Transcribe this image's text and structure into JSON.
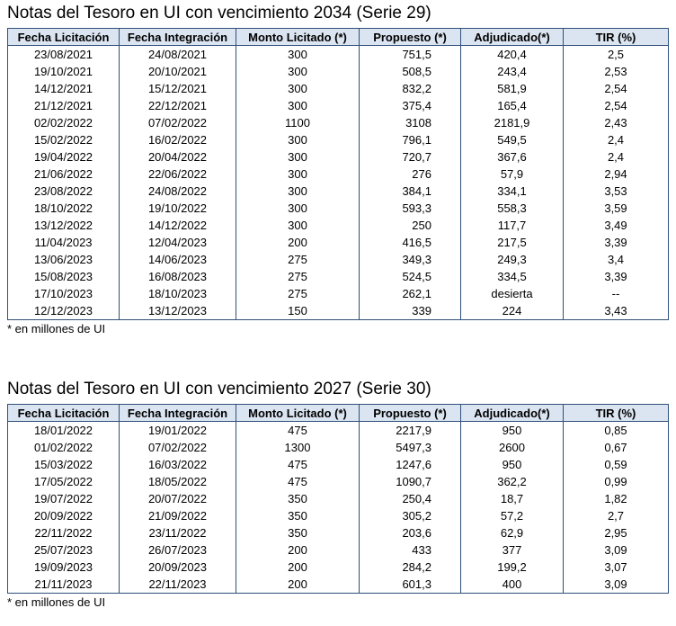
{
  "headers": [
    "Fecha Licitación",
    "Fecha Integración",
    "Monto Licitado (*)",
    "Propuesto (*)",
    "Adjudicado(*)",
    "TIR (%)"
  ],
  "tables": [
    {
      "title": "Notas del Tesoro en UI con vencimiento 2034 (Serie 29)",
      "note": "* en millones de UI",
      "rows": [
        [
          "23/08/2021",
          "24/08/2021",
          "300",
          "751,5",
          "420,4",
          "2,5"
        ],
        [
          "19/10/2021",
          "20/10/2021",
          "300",
          "508,5",
          "243,4",
          "2,53"
        ],
        [
          "14/12/2021",
          "15/12/2021",
          "300",
          "832,2",
          "581,9",
          "2,54"
        ],
        [
          "21/12/2021",
          "22/12/2021",
          "300",
          "375,4",
          "165,4",
          "2,54"
        ],
        [
          "02/02/2022",
          "07/02/2022",
          "1100",
          "3108",
          "2181,9",
          "2,43"
        ],
        [
          "15/02/2022",
          "16/02/2022",
          "300",
          "796,1",
          "549,5",
          "2,4"
        ],
        [
          "19/04/2022",
          "20/04/2022",
          "300",
          "720,7",
          "367,6",
          "2,4"
        ],
        [
          "21/06/2022",
          "22/06/2022",
          "300",
          "276",
          "57,9",
          "2,94"
        ],
        [
          "23/08/2022",
          "24/08/2022",
          "300",
          "384,1",
          "334,1",
          "3,53"
        ],
        [
          "18/10/2022",
          "19/10/2022",
          "300",
          "593,3",
          "558,3",
          "3,59"
        ],
        [
          "13/12/2022",
          "14/12/2022",
          "300",
          "250",
          "117,7",
          "3,49"
        ],
        [
          "11/04/2023",
          "12/04/2023",
          "200",
          "416,5",
          "217,5",
          "3,39"
        ],
        [
          "13/06/2023",
          "14/06/2023",
          "275",
          "349,3",
          "249,3",
          "3,4"
        ],
        [
          "15/08/2023",
          "16/08/2023",
          "275",
          "524,5",
          "334,5",
          "3,39"
        ],
        [
          "17/10/2023",
          "18/10/2023",
          "275",
          "262,1",
          "desierta",
          "--"
        ],
        [
          "12/12/2023",
          "13/12/2023",
          "150",
          "339",
          "224",
          "3,43"
        ]
      ]
    },
    {
      "title": "Notas del Tesoro en UI con vencimiento 2027 (Serie 30)",
      "note": "* en millones de UI",
      "rows": [
        [
          "18/01/2022",
          "19/01/2022",
          "475",
          "2217,9",
          "950",
          "0,85"
        ],
        [
          "01/02/2022",
          "07/02/2022",
          "1300",
          "5497,3",
          "2600",
          "0,67"
        ],
        [
          "15/03/2022",
          "16/03/2022",
          "475",
          "1247,6",
          "950",
          "0,59"
        ],
        [
          "17/05/2022",
          "18/05/2022",
          "475",
          "1090,7",
          "362,2",
          "0,99"
        ],
        [
          "19/07/2022",
          "20/07/2022",
          "350",
          "250,4",
          "18,7",
          "1,82"
        ],
        [
          "20/09/2022",
          "21/09/2022",
          "350",
          "305,2",
          "57,2",
          "2,7"
        ],
        [
          "22/11/2022",
          "23/11/2022",
          "350",
          "203,6",
          "62,9",
          "2,95"
        ],
        [
          "25/07/2023",
          "26/07/2023",
          "200",
          "433",
          "377",
          "3,09"
        ],
        [
          "19/09/2023",
          "20/09/2023",
          "200",
          "284,2",
          "199,2",
          "3,07"
        ],
        [
          "21/11/2023",
          "22/11/2023",
          "200",
          "601,3",
          "400",
          "3,09"
        ]
      ]
    }
  ]
}
